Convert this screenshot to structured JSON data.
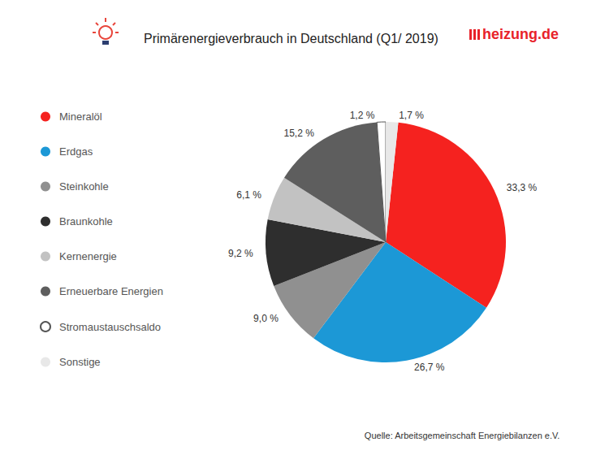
{
  "chart_data": {
    "type": "pie",
    "title": "Primärenergieverbrauch in Deutschland (Q1/ 2019)",
    "logo": "heizung.de",
    "source": "Quelle: Arbeitsgemeinschaft Energiebilanzen e.V.",
    "categories": [
      "Mineralöl",
      "Erdgas",
      "Steinkohle",
      "Braunkohle",
      "Kernenergie",
      "Erneuerbare Energien",
      "Stromaustauschsaldo",
      "Sonstige"
    ],
    "values": [
      33.3,
      26.7,
      9.0,
      9.2,
      6.1,
      15.2,
      1.2,
      1.7
    ],
    "value_labels": [
      "33,3 %",
      "26,7 %",
      "9,0 %",
      "9,2 %",
      "6,1 %",
      "15,2 %",
      "1,2 %",
      "1,7 %"
    ],
    "colors": [
      "#f5221f",
      "#1c98d6",
      "#909090",
      "#2e2e2e",
      "#c2c2c2",
      "#5e5e5e",
      "#ffffff",
      "#e8e8e8"
    ],
    "data_labels": true,
    "legend": "left"
  }
}
